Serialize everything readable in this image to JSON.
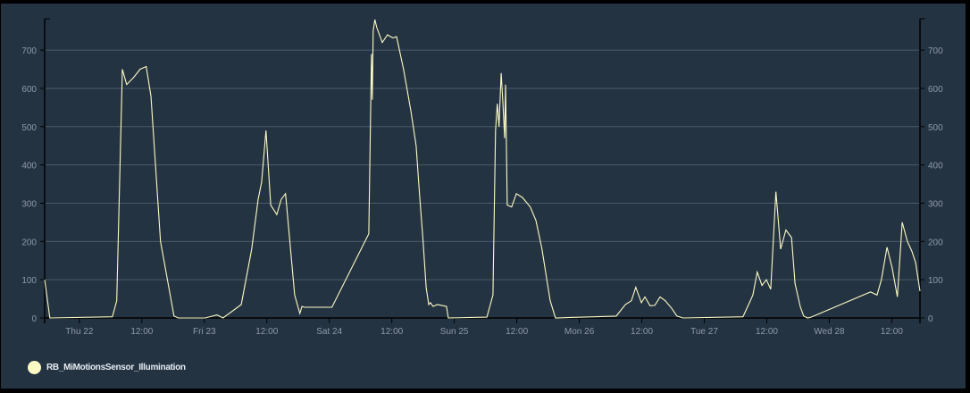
{
  "chart_data": {
    "type": "line",
    "title": "",
    "xlabel": "",
    "ylabel": "",
    "x_range": [
      "21 17:20",
      "28 17:25"
    ],
    "ylim": [
      0,
      782
    ],
    "grid": true,
    "legend_position": "bottom-left",
    "y_ticks": [
      "0",
      "100",
      "200",
      "300",
      "400",
      "500",
      "600",
      "700"
    ],
    "x_ticks": [
      {
        "time": "22 00:00",
        "label": "Thu 22"
      },
      {
        "time": "22 12:00",
        "label": "12:00"
      },
      {
        "time": "23 00:00",
        "label": "Fri 23"
      },
      {
        "time": "23 12:00",
        "label": "12:00"
      },
      {
        "time": "24 00:00",
        "label": "Sat 24"
      },
      {
        "time": "24 12:00",
        "label": "12:00"
      },
      {
        "time": "25 00:00",
        "label": "Sun 25"
      },
      {
        "time": "25 12:00",
        "label": "12:00"
      },
      {
        "time": "26 00:00",
        "label": "Mon 26"
      },
      {
        "time": "26 12:00",
        "label": "12:00"
      },
      {
        "time": "27 00:00",
        "label": "Tue 27"
      },
      {
        "time": "27 12:00",
        "label": "12:00"
      },
      {
        "time": "28 00:00",
        "label": "Wed 28"
      },
      {
        "time": "28 12:00",
        "label": "12:00"
      }
    ],
    "series": [
      {
        "name": "RB_MiMotionsSensor_Illumination",
        "color": "#fdfbc4",
        "points": [
          [
            "21 17:20",
            100
          ],
          [
            "21 18:20",
            0
          ],
          [
            "22 06:20",
            3
          ],
          [
            "22 07:10",
            45
          ],
          [
            "22 08:15",
            650
          ],
          [
            "22 09:05",
            610
          ],
          [
            "22 10:30",
            630
          ],
          [
            "22 11:40",
            650
          ],
          [
            "22 12:50",
            657
          ],
          [
            "22 13:45",
            580
          ],
          [
            "22 15:35",
            200
          ],
          [
            "22 18:10",
            5
          ],
          [
            "22 19:00",
            0
          ],
          [
            "23 00:10",
            0
          ],
          [
            "23 02:25",
            8
          ],
          [
            "23 03:35",
            0
          ],
          [
            "23 07:05",
            35
          ],
          [
            "23 09:05",
            180
          ],
          [
            "23 10:20",
            310
          ],
          [
            "23 11:00",
            355
          ],
          [
            "23 11:50",
            490
          ],
          [
            "23 12:45",
            295
          ],
          [
            "23 13:55",
            270
          ],
          [
            "23 14:45",
            310
          ],
          [
            "23 15:35",
            325
          ],
          [
            "23 17:20",
            60
          ],
          [
            "23 18:20",
            12
          ],
          [
            "23 18:45",
            30
          ],
          [
            "23 19:15",
            28
          ],
          [
            "24 00:30",
            28
          ],
          [
            "24 07:35",
            220
          ],
          [
            "24 08:05",
            690
          ],
          [
            "24 08:15",
            570
          ],
          [
            "24 08:25",
            750
          ],
          [
            "24 08:45",
            780
          ],
          [
            "24 09:05",
            760
          ],
          [
            "24 10:10",
            720
          ],
          [
            "24 11:10",
            740
          ],
          [
            "24 12:10",
            732
          ],
          [
            "24 12:55",
            735
          ],
          [
            "24 14:15",
            650
          ],
          [
            "24 15:40",
            540
          ],
          [
            "24 16:40",
            450
          ],
          [
            "24 17:20",
            320
          ],
          [
            "24 18:00",
            200
          ],
          [
            "24 18:35",
            80
          ],
          [
            "24 19:05",
            35
          ],
          [
            "24 19:25",
            40
          ],
          [
            "24 19:55",
            30
          ],
          [
            "24 20:45",
            35
          ],
          [
            "24 22:30",
            30
          ],
          [
            "24 22:50",
            0
          ],
          [
            "25 06:15",
            2
          ],
          [
            "25 07:25",
            60
          ],
          [
            "25 07:55",
            490
          ],
          [
            "25 08:15",
            560
          ],
          [
            "25 08:35",
            500
          ],
          [
            "25 09:00",
            640
          ],
          [
            "25 09:20",
            560
          ],
          [
            "25 09:40",
            470
          ],
          [
            "25 09:50",
            610
          ],
          [
            "25 10:10",
            295
          ],
          [
            "25 11:00",
            290
          ],
          [
            "25 11:55",
            325
          ],
          [
            "25 13:05",
            315
          ],
          [
            "25 14:35",
            290
          ],
          [
            "25 15:40",
            255
          ],
          [
            "25 16:50",
            180
          ],
          [
            "25 17:45",
            100
          ],
          [
            "25 18:25",
            45
          ],
          [
            "25 19:25",
            0
          ],
          [
            "26 07:05",
            5
          ],
          [
            "26 08:50",
            35
          ],
          [
            "26 10:00",
            45
          ],
          [
            "26 10:50",
            80
          ],
          [
            "26 11:55",
            40
          ],
          [
            "26 12:35",
            55
          ],
          [
            "26 13:35",
            32
          ],
          [
            "26 14:30",
            33
          ],
          [
            "26 15:30",
            55
          ],
          [
            "26 16:30",
            45
          ],
          [
            "26 17:45",
            25
          ],
          [
            "26 18:45",
            5
          ],
          [
            "26 19:55",
            0
          ],
          [
            "27 07:25",
            3
          ],
          [
            "27 08:30",
            35
          ],
          [
            "27 09:20",
            60
          ],
          [
            "27 10:10",
            120
          ],
          [
            "27 11:05",
            85
          ],
          [
            "27 11:55",
            100
          ],
          [
            "27 12:45",
            75
          ],
          [
            "27 13:45",
            330
          ],
          [
            "27 14:40",
            180
          ],
          [
            "27 15:40",
            230
          ],
          [
            "27 16:45",
            210
          ],
          [
            "27 17:25",
            90
          ],
          [
            "27 18:25",
            30
          ],
          [
            "27 19:05",
            5
          ],
          [
            "27 19:50",
            0
          ],
          [
            "27 20:30",
            2
          ],
          [
            "28 07:55",
            68
          ],
          [
            "28 09:10",
            60
          ],
          [
            "28 10:00",
            100
          ],
          [
            "28 11:05",
            185
          ],
          [
            "28 12:05",
            130
          ],
          [
            "28 13:05",
            55
          ],
          [
            "28 14:00",
            250
          ],
          [
            "28 15:00",
            200
          ],
          [
            "28 15:50",
            175
          ],
          [
            "28 16:35",
            145
          ],
          [
            "28 17:25",
            70
          ]
        ]
      }
    ]
  }
}
